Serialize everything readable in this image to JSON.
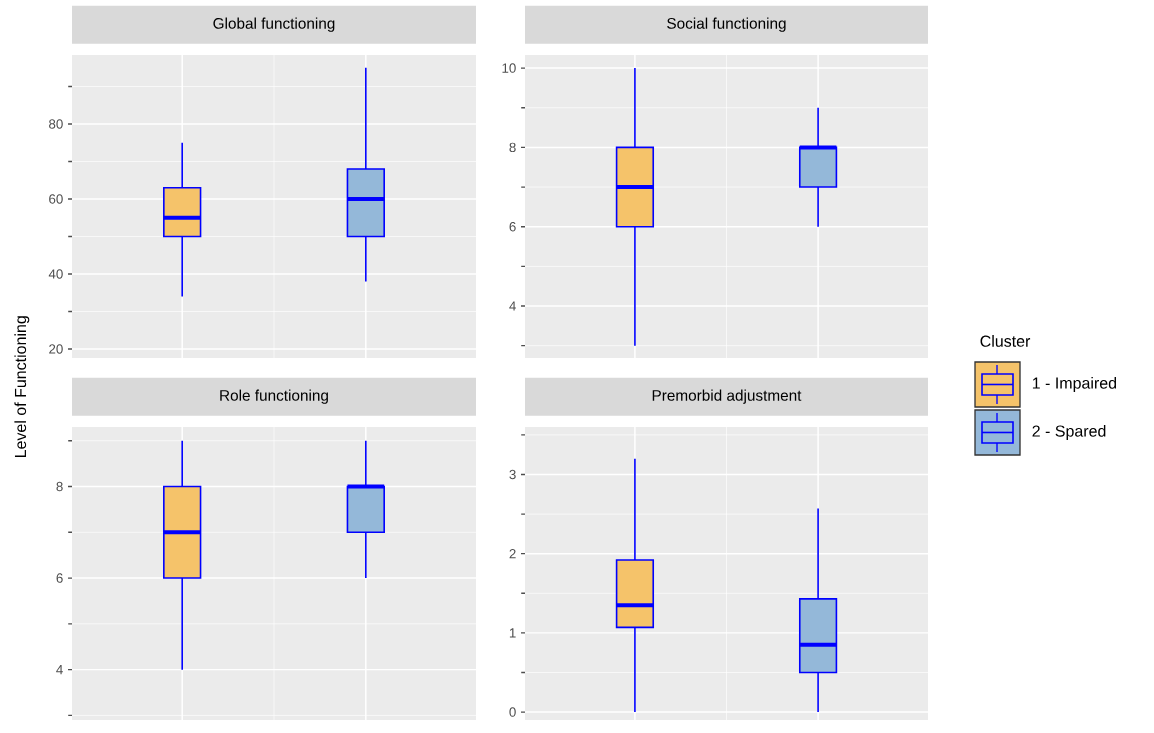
{
  "chart_data": [
    {
      "type": "box",
      "title": "Global functioning",
      "ylabel": "Level of Functioning",
      "categories": [
        null,
        null
      ],
      "ylim": [
        17.6,
        98.4
      ],
      "yticks": [
        20,
        40,
        60,
        80
      ],
      "grid": true,
      "series": [
        {
          "color": "#f5c36a",
          "boxes": [
            {
              "low": 34,
              "q1": 50,
              "median": 55,
              "q3": 63,
              "high": 75
            },
            null
          ]
        },
        {
          "color": "#94b8d9",
          "boxes": [
            null,
            {
              "low": 38,
              "q1": 50,
              "median": 60,
              "q3": 68,
              "high": 95
            }
          ]
        }
      ]
    },
    {
      "type": "box",
      "title": "Social functioning",
      "categories": [
        null,
        null
      ],
      "ylim": [
        2.69,
        10.33
      ],
      "yticks": [
        4,
        6,
        8,
        10
      ],
      "grid": true,
      "legend": "right",
      "legend_title": "Cluster",
      "series": [
        {
          "name": "1 - Impaired",
          "color": "#f5c36a",
          "boxes": [
            {
              "low": 3,
              "q1": 6,
              "median": 7,
              "q3": 8,
              "high": 10
            },
            null
          ]
        },
        {
          "name": "2 - Spared",
          "color": "#94b8d9",
          "boxes": [
            null,
            {
              "low": 6,
              "q1": 7,
              "median": 8,
              "q3": 8,
              "high": 9
            }
          ]
        }
      ]
    },
    {
      "type": "box",
      "title": "Role functioning",
      "categories": [
        null,
        null
      ],
      "ylim": [
        2.9,
        9.3
      ],
      "yticks": [
        4,
        6,
        8
      ],
      "grid": true,
      "series": [
        {
          "color": "#f5c36a",
          "boxes": [
            {
              "low": 4,
              "q1": 6,
              "median": 7,
              "q3": 8,
              "high": 9
            },
            null
          ]
        },
        {
          "color": "#94b8d9",
          "boxes": [
            null,
            {
              "low": 6,
              "q1": 7,
              "median": 8,
              "q3": 8,
              "high": 9
            }
          ]
        }
      ]
    },
    {
      "type": "box",
      "title": "Premorbid adjustment",
      "categories": [
        null,
        null
      ],
      "ylim": [
        -0.1,
        3.6
      ],
      "yticks": [
        0,
        1,
        2,
        3
      ],
      "grid": true,
      "series": [
        {
          "color": "#f5c36a",
          "boxes": [
            {
              "low": 0,
              "q1": 1.07,
              "median": 1.35,
              "q3": 1.92,
              "high": 3.2
            },
            null
          ]
        },
        {
          "color": "#94b8d9",
          "boxes": [
            null,
            {
              "low": 0,
              "q1": 0.5,
              "median": 0.85,
              "q3": 1.43,
              "high": 2.57
            }
          ]
        }
      ]
    }
  ]
}
